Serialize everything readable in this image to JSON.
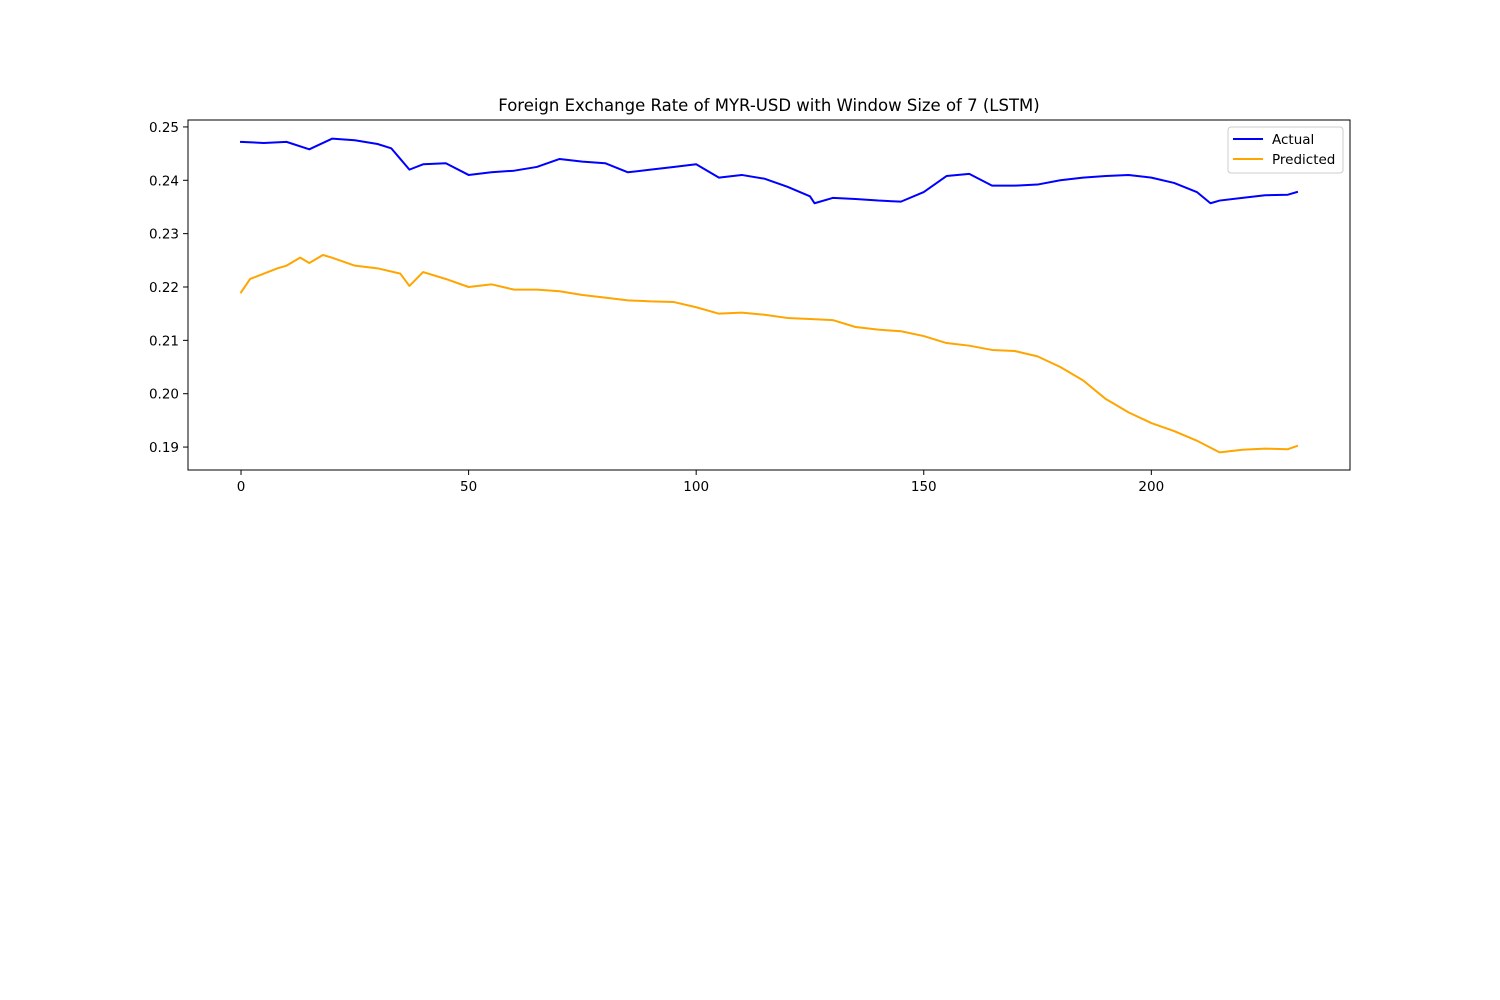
{
  "chart_data": {
    "type": "line",
    "title": "Foreign Exchange Rate of MYR-USD with Window Size of 7 (LSTM)",
    "xlabel": "",
    "ylabel": "",
    "xlim": [
      -11.65,
      243.65
    ],
    "ylim": [
      0.1857,
      0.2513
    ],
    "xticks": [
      0,
      50,
      100,
      150,
      200
    ],
    "yticks": [
      0.19,
      0.2,
      0.21,
      0.22,
      0.23,
      0.24,
      0.25
    ],
    "yticklabels": [
      "0.19",
      "0.20",
      "0.21",
      "0.22",
      "0.23",
      "0.24",
      "0.25"
    ],
    "grid": false,
    "legend": "top-right",
    "colors": {
      "actual": "#0000ff",
      "predicted": "#ffa500"
    },
    "series": [
      {
        "name": "Actual",
        "key": "actual",
        "x": [
          0,
          5,
          10,
          15,
          20,
          25,
          30,
          33,
          35,
          37,
          40,
          45,
          50,
          55,
          60,
          65,
          70,
          75,
          80,
          85,
          90,
          95,
          100,
          105,
          110,
          115,
          120,
          125,
          126,
          130,
          135,
          140,
          145,
          150,
          155,
          160,
          165,
          170,
          175,
          180,
          185,
          190,
          195,
          200,
          205,
          210,
          213,
          215,
          220,
          225,
          230,
          232
        ],
        "values": [
          0.2472,
          0.247,
          0.2472,
          0.2458,
          0.2478,
          0.2475,
          0.2468,
          0.246,
          0.244,
          0.242,
          0.243,
          0.2432,
          0.241,
          0.2415,
          0.2418,
          0.2425,
          0.244,
          0.2435,
          0.2432,
          0.2415,
          0.242,
          0.2425,
          0.243,
          0.2405,
          0.241,
          0.2403,
          0.2388,
          0.237,
          0.2357,
          0.2367,
          0.2365,
          0.2362,
          0.236,
          0.2378,
          0.2408,
          0.2412,
          0.239,
          0.239,
          0.2392,
          0.24,
          0.2405,
          0.2408,
          0.241,
          0.2405,
          0.2395,
          0.2378,
          0.2357,
          0.2362,
          0.2367,
          0.2372,
          0.2373,
          0.2378
        ]
      },
      {
        "name": "Predicted",
        "key": "predicted",
        "x": [
          0,
          2,
          5,
          8,
          10,
          13,
          15,
          18,
          20,
          25,
          30,
          35,
          37,
          40,
          45,
          50,
          55,
          60,
          65,
          70,
          75,
          80,
          85,
          90,
          95,
          100,
          105,
          110,
          115,
          120,
          125,
          130,
          135,
          140,
          145,
          150,
          155,
          160,
          165,
          170,
          175,
          180,
          185,
          190,
          195,
          200,
          205,
          210,
          215,
          220,
          225,
          230,
          232
        ],
        "values": [
          0.219,
          0.2215,
          0.2225,
          0.2235,
          0.224,
          0.2255,
          0.2245,
          0.226,
          0.2255,
          0.224,
          0.2235,
          0.2225,
          0.2202,
          0.2228,
          0.2215,
          0.22,
          0.2205,
          0.2195,
          0.2195,
          0.2192,
          0.2185,
          0.218,
          0.2175,
          0.2173,
          0.2172,
          0.2162,
          0.215,
          0.2152,
          0.2148,
          0.2142,
          0.214,
          0.2138,
          0.2125,
          0.212,
          0.2117,
          0.2108,
          0.2095,
          0.209,
          0.2082,
          0.208,
          0.207,
          0.205,
          0.2025,
          0.199,
          0.1965,
          0.1945,
          0.193,
          0.1912,
          0.189,
          0.1895,
          0.1897,
          0.1896,
          0.1902
        ]
      }
    ]
  }
}
